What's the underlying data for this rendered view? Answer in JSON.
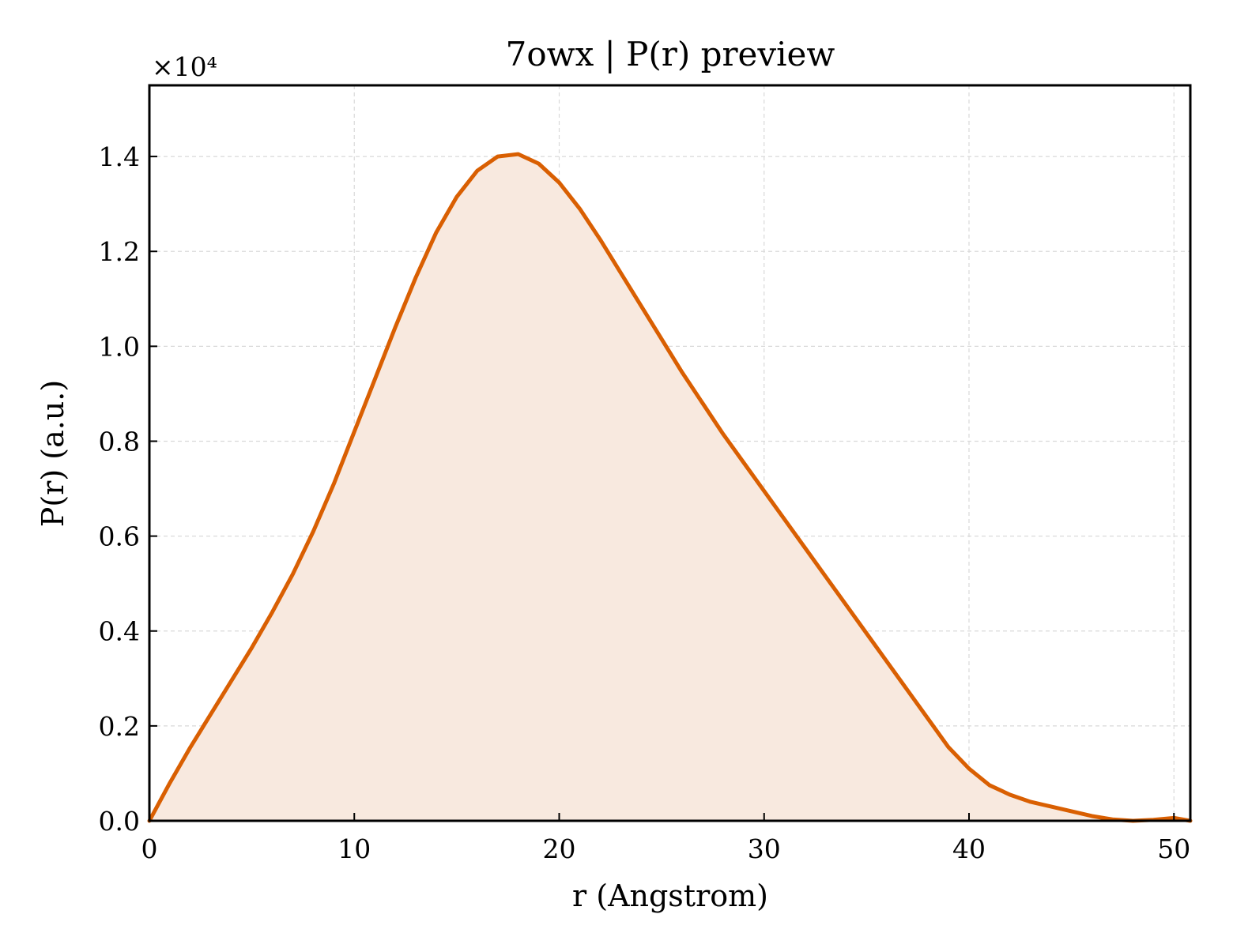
{
  "chart_data": {
    "type": "area",
    "title": "7owx | P(r) preview",
    "xlabel": "r (Angstrom)",
    "ylabel": "P(r) (a.u.)",
    "y_offset_label": "×10⁴",
    "xlim": [
      0,
      50.8
    ],
    "ylim": [
      0,
      1.55
    ],
    "xticks": [
      0,
      10,
      20,
      30,
      40,
      50
    ],
    "xtick_labels": [
      "0",
      "10",
      "20",
      "30",
      "40",
      "50"
    ],
    "yticks": [
      0.0,
      0.2,
      0.4,
      0.6,
      0.8,
      1.0,
      1.2,
      1.4
    ],
    "ytick_labels": [
      "0.0",
      "0.2",
      "0.4",
      "0.6",
      "0.8",
      "1.0",
      "1.2",
      "1.4"
    ],
    "grid": true,
    "line_color": "#d95f02",
    "fill_color": "#f8e9df",
    "series": [
      {
        "x": [
          0,
          1,
          2,
          3,
          4,
          5,
          6,
          7,
          8,
          9,
          10,
          11,
          12,
          13,
          14,
          15,
          16,
          17,
          18,
          19,
          20,
          21,
          22,
          23,
          24,
          25,
          26,
          27,
          28,
          29,
          30,
          31,
          32,
          33,
          34,
          35,
          36,
          37,
          38,
          39,
          40,
          41,
          42,
          43,
          44,
          45,
          46,
          47,
          48,
          49,
          50,
          50.8
        ],
        "y": [
          0.0,
          0.08,
          0.155,
          0.225,
          0.295,
          0.365,
          0.44,
          0.52,
          0.61,
          0.71,
          0.82,
          0.93,
          1.04,
          1.145,
          1.24,
          1.315,
          1.37,
          1.4,
          1.405,
          1.385,
          1.345,
          1.29,
          1.225,
          1.155,
          1.085,
          1.015,
          0.945,
          0.88,
          0.815,
          0.755,
          0.695,
          0.635,
          0.575,
          0.515,
          0.455,
          0.395,
          0.335,
          0.275,
          0.215,
          0.155,
          0.11,
          0.075,
          0.055,
          0.04,
          0.03,
          0.02,
          0.01,
          0.003,
          0.0,
          0.002,
          0.006,
          0.0
        ]
      }
    ]
  }
}
